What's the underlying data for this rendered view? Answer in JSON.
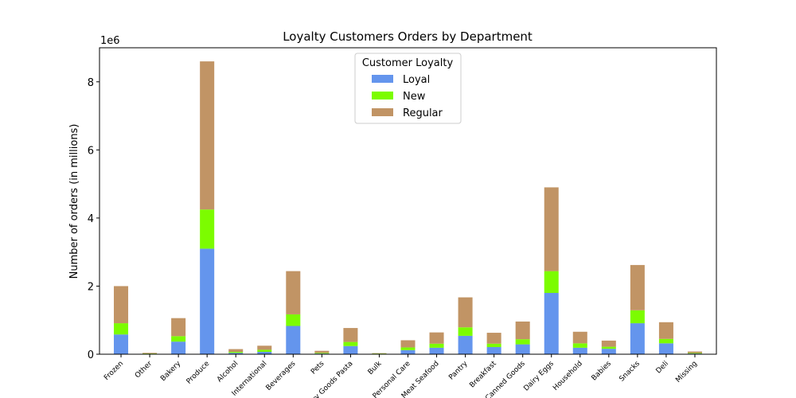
{
  "chart_data": {
    "type": "bar",
    "stacked": true,
    "title": "Loyalty Customers Orders by Department",
    "ylabel": "Number of orders (in millions)",
    "xlabel": "",
    "offset_text": "1e6",
    "ylim": [
      0,
      9000000
    ],
    "yticks": [
      0,
      2000000,
      4000000,
      6000000,
      8000000
    ],
    "ytick_labels": [
      "0",
      "2",
      "4",
      "6",
      "8"
    ],
    "categories": [
      "Frozen",
      "Other",
      "Bakery",
      "Produce",
      "Alcohol",
      "International",
      "Beverages",
      "Pets",
      "Dry Goods Pasta",
      "Bulk",
      "Personal Care",
      "Meat Seafood",
      "Pantry",
      "Breakfast",
      "Canned Goods",
      "Dairy Eggs",
      "Household",
      "Babies",
      "Snacks",
      "Deli",
      "Missing"
    ],
    "series": [
      {
        "name": "Loyal",
        "color": "#6495ED",
        "values": [
          580000,
          10000,
          370000,
          3100000,
          40000,
          70000,
          830000,
          20000,
          240000,
          12000,
          120000,
          190000,
          540000,
          210000,
          290000,
          1800000,
          190000,
          160000,
          910000,
          320000,
          20000
        ]
      },
      {
        "name": "New",
        "color": "#7CFC00",
        "values": [
          330000,
          10000,
          160000,
          1150000,
          30000,
          60000,
          340000,
          20000,
          120000,
          8000,
          80000,
          120000,
          250000,
          100000,
          150000,
          640000,
          130000,
          60000,
          380000,
          130000,
          15000
        ]
      },
      {
        "name": "Regular",
        "color": "#C19465",
        "values": [
          1090000,
          20000,
          530000,
          4350000,
          80000,
          120000,
          1270000,
          60000,
          410000,
          12000,
          210000,
          330000,
          880000,
          320000,
          520000,
          2460000,
          340000,
          180000,
          1330000,
          490000,
          45000
        ]
      }
    ],
    "legend": {
      "title": "Customer Loyalty",
      "position": "top-center"
    },
    "grid": false
  }
}
